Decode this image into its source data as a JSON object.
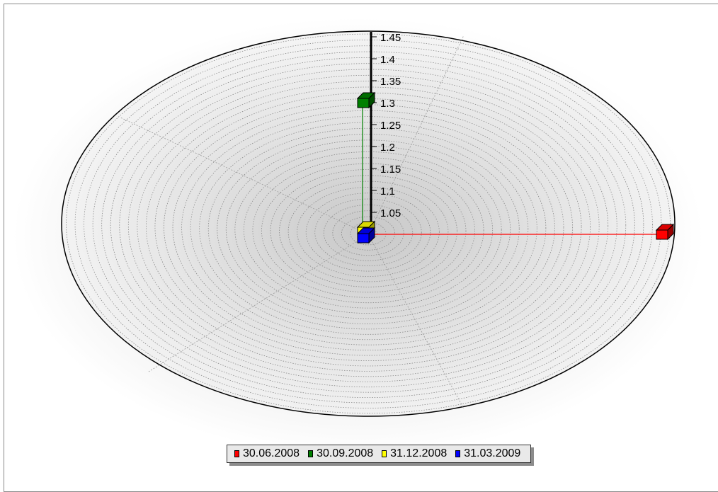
{
  "chart_data": {
    "type": "radar",
    "radial_axis": {
      "min": 1.0,
      "max": 1.45,
      "ticks": [
        "1.05",
        "1.1",
        "1.15",
        "1.2",
        "1.25",
        "1.3",
        "1.35",
        "1.4",
        "1.45"
      ],
      "grid": true
    },
    "legend_position": "bottom",
    "series": [
      {
        "name": "30.06.2008",
        "color": "#ff0000",
        "angle_deg": 0,
        "value": 1.45
      },
      {
        "name": "30.09.2008",
        "color": "#008000",
        "angle_deg": 90,
        "value": 1.3
      },
      {
        "name": "31.12.2008",
        "color": "#ffff00",
        "angle_deg": 90,
        "value": 1.0
      },
      {
        "name": "31.03.2009",
        "color": "#0000ff",
        "angle_deg": 90,
        "value": 1.0
      }
    ]
  }
}
